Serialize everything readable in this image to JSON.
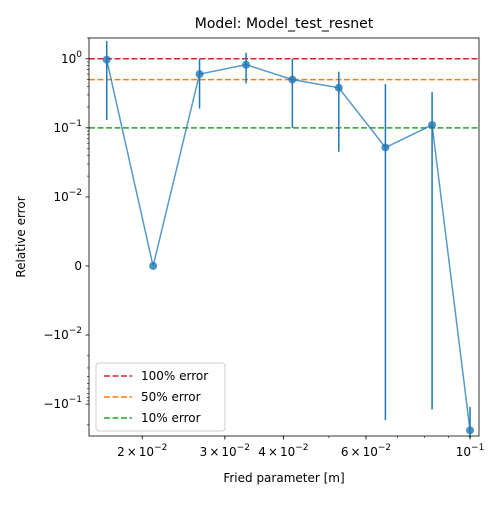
{
  "chart_data": {
    "type": "line",
    "title": "Model: Model_test_resnet",
    "xlabel": "Fried parameter [m]",
    "ylabel": "Relative error",
    "xscale": "log",
    "yscale": "symlog",
    "linthresh": 0.01,
    "xlim": [
      0.0154,
      0.1045
    ],
    "ylim": [
      -0.29,
      2.0
    ],
    "xticks": [
      {
        "value": 0.02,
        "mantissa": "2",
        "base": "10",
        "exp": "−2"
      },
      {
        "value": 0.03,
        "mantissa": "3",
        "base": "10",
        "exp": "−2"
      },
      {
        "value": 0.04,
        "mantissa": "4",
        "base": "10",
        "exp": "−2"
      },
      {
        "value": 0.06,
        "mantissa": "6",
        "base": "10",
        "exp": "−2"
      },
      {
        "value": 0.1,
        "mantissa": "",
        "base": "10",
        "exp": "−1"
      }
    ],
    "yticks": [
      {
        "value": 1,
        "sign": "",
        "base": "10",
        "exp": "0"
      },
      {
        "value": 0.1,
        "sign": "",
        "base": "10",
        "exp": "−1"
      },
      {
        "value": 0.01,
        "sign": "",
        "base": "10",
        "exp": "−2"
      },
      {
        "value": 0,
        "plain": "0"
      },
      {
        "value": -0.01,
        "sign": "−",
        "base": "10",
        "exp": "−2"
      },
      {
        "value": -0.1,
        "sign": "−",
        "base": "10",
        "exp": "−1"
      }
    ],
    "series": [
      {
        "color": "#1f77b4",
        "x": [
          0.0168,
          0.0211,
          0.0265,
          0.0333,
          0.0418,
          0.0525,
          0.066,
          0.083,
          0.1
        ],
        "y": [
          0.97,
          0.0,
          0.6,
          0.82,
          0.5,
          0.38,
          0.052,
          0.11,
          -0.24
        ],
        "yerr_low": [
          0.13,
          0.0,
          0.19,
          0.44,
          0.1,
          0.045,
          -0.17,
          -0.12,
          -0.31
        ],
        "yerr_high": [
          1.8,
          0.0,
          1.0,
          1.22,
          1.0,
          0.65,
          0.43,
          0.33,
          -0.11
        ]
      }
    ],
    "hlines": [
      {
        "y": 1.0,
        "label": "100% error",
        "color": "#d62728"
      },
      {
        "y": 0.5,
        "label": "50% error",
        "color": "#ff7f0e"
      },
      {
        "y": 0.1,
        "label": "10% error",
        "color": "#2ca02c"
      }
    ],
    "legend": "lower-left",
    "grid": false
  }
}
